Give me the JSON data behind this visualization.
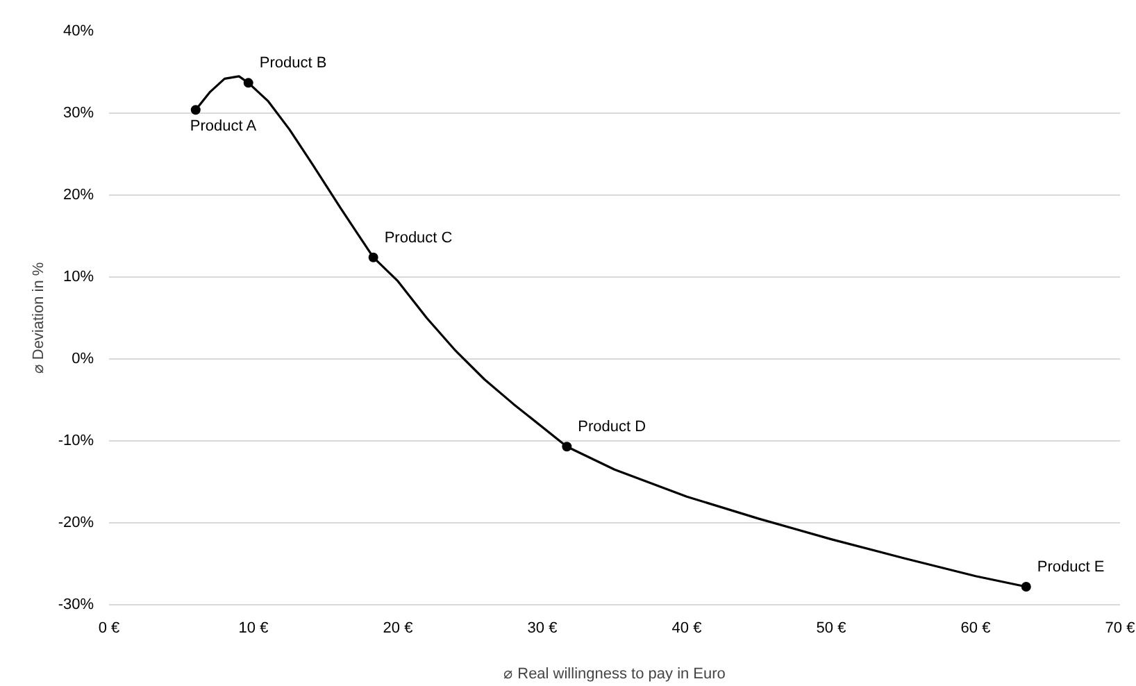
{
  "chart_data": {
    "type": "line",
    "xlabel": "⌀ Real willingness to pay in Euro",
    "ylabel": "⌀ Deviation in %",
    "x": [
      6.0,
      9.65,
      18.3,
      31.7,
      63.5
    ],
    "series": [
      {
        "marker": "none",
        "color": "#000000",
        "x": [
          6.0,
          7,
          8,
          9,
          9.65,
          11,
          12.5,
          14,
          16,
          18.3,
          20,
          22,
          24,
          26,
          28,
          31.7,
          35,
          40,
          45,
          50,
          55,
          60,
          63.5
        ],
        "values": [
          30.4,
          32.6,
          34.2,
          34.5,
          33.7,
          31.5,
          28,
          24,
          18.5,
          12.4,
          9.5,
          5,
          1,
          -2.5,
          -5.5,
          -10.7,
          -13.5,
          -16.8,
          -19.5,
          -22,
          -24.3,
          -26.5,
          -27.8
        ]
      },
      {
        "type": "scatter",
        "color": "#000000",
        "values": [
          30.4,
          33.7,
          12.4,
          -10.7,
          -27.8
        ]
      }
    ],
    "xlim": [
      0,
      70
    ],
    "ylim": [
      -30,
      40
    ],
    "xticks": [
      {
        "value": 0,
        "label": "0 €"
      },
      {
        "value": 10,
        "label": "10 €"
      },
      {
        "value": 20,
        "label": "20 €"
      },
      {
        "value": 30,
        "label": "30 €"
      },
      {
        "value": 40,
        "label": "40 €"
      },
      {
        "value": 50,
        "label": "50 €"
      },
      {
        "value": 60,
        "label": "60 €"
      },
      {
        "value": 70,
        "label": "70 €"
      }
    ],
    "yticks": [
      {
        "value": -30,
        "label": "-30%"
      },
      {
        "value": -20,
        "label": "-20%"
      },
      {
        "value": -10,
        "label": "-10%"
      },
      {
        "value": 0,
        "label": "0%"
      },
      {
        "value": 10,
        "label": "10%"
      },
      {
        "value": 20,
        "label": "20%"
      },
      {
        "value": 30,
        "label": "30%"
      },
      {
        "value": 40,
        "label": "40%"
      }
    ],
    "grid": "y",
    "line_style": "solid",
    "annotations": [
      {
        "text": "Product A",
        "x": 6.0,
        "y": 30.4
      },
      {
        "text": "Product B",
        "x": 9.65,
        "y": 33.7
      },
      {
        "text": "Product C",
        "x": 18.3,
        "y": 12.4
      },
      {
        "text": "Product D",
        "x": 31.7,
        "y": -10.7
      },
      {
        "text": "Product E",
        "x": 63.5,
        "y": -27.8
      }
    ]
  }
}
